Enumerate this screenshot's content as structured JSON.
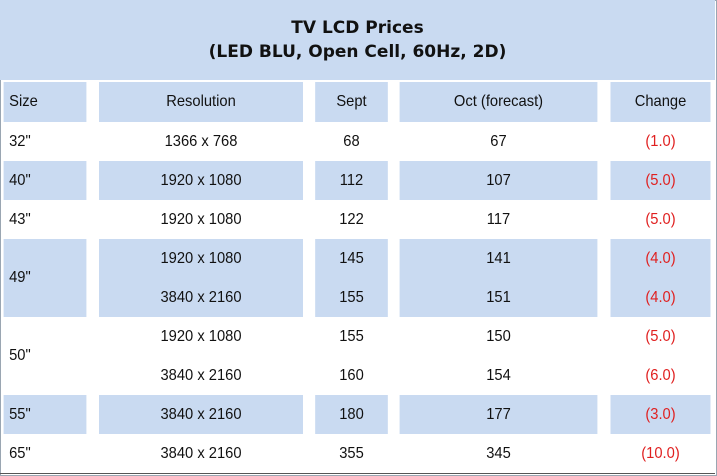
{
  "chart_data": {
    "type": "table",
    "title": "TV LCD Prices",
    "subtitle": "(LED BLU, Open Cell, 60Hz, 2D)",
    "columns": [
      "Size",
      "Resolution",
      "Sept",
      "Oct (forecast)",
      "Change"
    ],
    "rows": [
      {
        "size": "32\"",
        "resolution": "1366 x 768",
        "sept": "68",
        "oct": "67",
        "change": "(1.0)"
      },
      {
        "size": "40\"",
        "resolution": "1920 x 1080",
        "sept": "112",
        "oct": "107",
        "change": "(5.0)"
      },
      {
        "size": "43\"",
        "resolution": "1920 x 1080",
        "sept": "122",
        "oct": "117",
        "change": "(5.0)"
      },
      {
        "size": "49\"",
        "resolution": "1920 x 1080",
        "sept": "145",
        "oct": "141",
        "change": "(4.0)"
      },
      {
        "size": "49\"",
        "resolution": "3840 x 2160",
        "sept": "155",
        "oct": "151",
        "change": "(4.0)"
      },
      {
        "size": "50\"",
        "resolution": "1920 x 1080",
        "sept": "155",
        "oct": "150",
        "change": "(5.0)"
      },
      {
        "size": "50\"",
        "resolution": "3840 x 2160",
        "sept": "160",
        "oct": "154",
        "change": "(6.0)"
      },
      {
        "size": "55\"",
        "resolution": "3840 x 2160",
        "sept": "180",
        "oct": "177",
        "change": "(3.0)"
      },
      {
        "size": "65\"",
        "resolution": "3840 x 2160",
        "sept": "355",
        "oct": "345",
        "change": "(10.0)"
      }
    ],
    "colors": {
      "band": "#c9daf1",
      "negative": "#e02020"
    }
  }
}
